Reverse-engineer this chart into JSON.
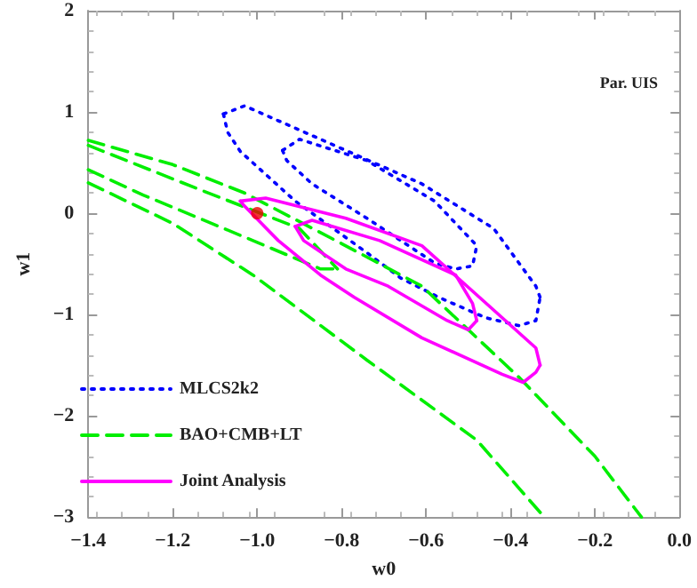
{
  "chart_data": {
    "type": "line",
    "xlabel": "w0",
    "ylabel": "w1",
    "annotations": [
      "Par. UIS"
    ],
    "xlim": [
      -1.4,
      0.0
    ],
    "ylim": [
      -3,
      2
    ],
    "xticks": [
      -1.4,
      -1.2,
      {
        "value": -1,
        "label": "−1.0"
      },
      -0.8,
      -0.6,
      -0.4,
      -0.2,
      {
        "value": 0,
        "label": "0.0"
      }
    ],
    "yticks": [
      -3,
      -2,
      -1,
      0,
      1,
      2
    ],
    "grid": false,
    "legend": "bottom left",
    "marker": "none",
    "series": [
      {
        "name": "MLCS2k2",
        "color": "#0000ff",
        "line_style": "dotted",
        "x": [
          -1.08,
          -1.03,
          -0.79,
          -0.61,
          -0.44,
          -0.34,
          -0.33
        ],
        "values": [
          0.98,
          1.06,
          0.62,
          0.29,
          -0.15,
          -0.72,
          -0.83
        ]
      },
      {
        "color": "#0000ff",
        "line_style": "dotted",
        "x": [
          -1.08,
          -1.07,
          -1.04,
          -0.91,
          -0.74,
          -0.66,
          -0.57,
          -0.46,
          -0.38,
          -0.34,
          -0.33
        ],
        "values": [
          0.98,
          0.8,
          0.61,
          0.12,
          -0.39,
          -0.64,
          -0.83,
          -1.03,
          -1.11,
          -1.06,
          -0.83
        ]
      },
      {
        "color": "#0000ff",
        "line_style": "dotted",
        "x": [
          -0.94,
          -0.9,
          -0.74,
          -0.58,
          -0.48
        ],
        "values": [
          0.62,
          0.73,
          0.52,
          0.12,
          -0.32
        ]
      },
      {
        "color": "#0000ff",
        "line_style": "dotted",
        "x": [
          -0.94,
          -0.93,
          -0.87,
          -0.74,
          -0.58,
          -0.53,
          -0.49,
          -0.48
        ],
        "values": [
          0.62,
          0.52,
          0.29,
          -0.05,
          -0.49,
          -0.55,
          -0.52,
          -0.32
        ]
      },
      {
        "name": "BAO+CMB+LT",
        "color": "#00ee00",
        "line_style": "dashed",
        "x": [
          -1.4,
          -1.2,
          -1.03,
          -0.8,
          -0.61,
          -0.38,
          -0.2,
          -0.09
        ],
        "values": [
          0.72,
          0.48,
          0.2,
          -0.3,
          -0.72,
          -1.62,
          -2.4,
          -3
        ]
      },
      {
        "color": "#00ee00",
        "line_style": "dashed",
        "x": [
          -1.4,
          -1.14,
          -0.9,
          -0.81
        ],
        "values": [
          0.67,
          0.24,
          -0.15,
          -0.55
        ]
      },
      {
        "color": "#00ee00",
        "line_style": "dashed",
        "x": [
          -1.4,
          -1.27,
          -1.01,
          -0.85,
          -0.81
        ],
        "values": [
          0.43,
          0.18,
          -0.27,
          -0.55,
          -0.55
        ]
      },
      {
        "color": "#00ee00",
        "line_style": "dashed",
        "x": [
          -1.4,
          -1.2,
          -1.01,
          -0.74,
          -0.48,
          -0.32
        ],
        "values": [
          0.3,
          -0.1,
          -0.61,
          -1.45,
          -2.24,
          -3
        ]
      },
      {
        "name": "Joint Analysis",
        "color": "#ff00ff",
        "line_style": "solid",
        "x": [
          -1.04,
          -0.98,
          -0.79,
          -0.61,
          -0.34,
          -0.33
        ],
        "values": [
          0.12,
          0.15,
          -0.05,
          -0.32,
          -1.33,
          -1.5
        ]
      },
      {
        "color": "#ff00ff",
        "line_style": "solid",
        "x": [
          -1.04,
          -1.03,
          -0.95,
          -0.85,
          -0.77,
          -0.61,
          -0.42,
          -0.37,
          -0.34,
          -0.33
        ],
        "values": [
          0.12,
          0.07,
          -0.27,
          -0.61,
          -0.83,
          -1.23,
          -1.59,
          -1.67,
          -1.57,
          -1.5
        ]
      },
      {
        "color": "#ff00ff",
        "line_style": "solid",
        "x": [
          -0.91,
          -0.87,
          -0.71,
          -0.53,
          -0.49,
          -0.48
        ],
        "values": [
          -0.13,
          -0.07,
          -0.27,
          -0.61,
          -0.89,
          -1.06
        ]
      },
      {
        "color": "#ff00ff",
        "line_style": "solid",
        "x": [
          -0.91,
          -0.89,
          -0.79,
          -0.69,
          -0.55,
          -0.5,
          -0.48
        ],
        "values": [
          -0.13,
          -0.27,
          -0.55,
          -0.72,
          -1.06,
          -1.15,
          -1.06
        ]
      },
      {
        "type": "scatter",
        "marker": "circle",
        "color": "#ee0000",
        "x": [
          -1.0
        ],
        "values": [
          0.0
        ]
      }
    ]
  }
}
